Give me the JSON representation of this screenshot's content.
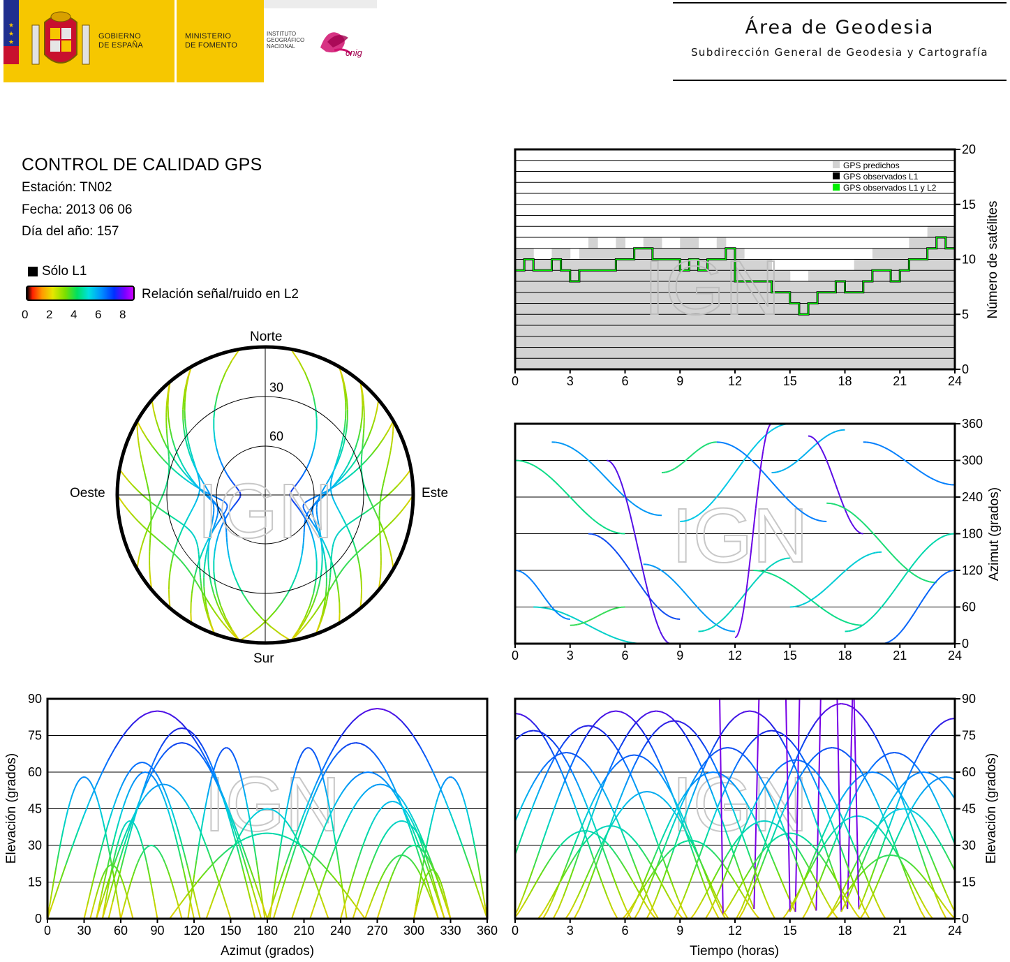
{
  "header": {
    "gobierno": [
      "GOBIERNO",
      "DE ESPAÑA"
    ],
    "ministerio": [
      "MINISTERIO",
      "DE FOMENTO"
    ],
    "instituto": [
      "INSTITUTO",
      "GEOGRÁFICO",
      "NACIONAL"
    ],
    "cnig_logo_text": "cnig",
    "area_title": "Área de Geodesia",
    "area_subtitle": "Subdirección General de Geodesia y Cartografía"
  },
  "info": {
    "title": "CONTROL DE CALIDAD GPS",
    "station": "Estación: TN02",
    "date": "Fecha: 2013 06 06",
    "doy": "Día del año: 157",
    "legend_l1": "Sólo L1",
    "legend_snr": "Relación señal/ruido en L2",
    "scale_ticks": [
      "0",
      "2",
      "4",
      "6",
      "8"
    ]
  },
  "colors": {
    "snr_scale": [
      "#000000",
      "#ff2000",
      "#ff9a00",
      "#e6e600",
      "#7ae000",
      "#00e060",
      "#00e0e0",
      "#0090ff",
      "#0030ff",
      "#7a00ff",
      "#cc00ff"
    ],
    "predicted": "#d3d3d3",
    "observed_l1": "#000000",
    "observed_l1_l2": "#00ee00"
  },
  "watermark": "IGN",
  "chart_data": [
    {
      "id": "skyplot",
      "type": "scatter",
      "title": "",
      "directions": [
        "Norte",
        "Sur",
        "Este",
        "Oeste"
      ],
      "elevation_rings": [
        "30",
        "60"
      ],
      "xlabel": "",
      "ylabel": ""
    },
    {
      "id": "sat_count",
      "type": "area",
      "xlabel": "",
      "ylabel": "Número de satélites",
      "xlim": [
        0,
        24
      ],
      "ylim": [
        0,
        20
      ],
      "xticks": [
        "0",
        "3",
        "6",
        "9",
        "12",
        "15",
        "18",
        "21",
        "24"
      ],
      "yticks": [
        "0",
        "5",
        "10",
        "15",
        "20"
      ],
      "legend": [
        "GPS predichos",
        "GPS observados L1",
        "GPS observados L1 y L2"
      ],
      "legend_position": "top-right",
      "x": [
        0,
        0.5,
        1,
        1.5,
        2,
        2.5,
        3,
        3.5,
        4,
        4.5,
        5,
        5.5,
        6,
        6.5,
        7,
        7.5,
        8,
        8.5,
        9,
        9.5,
        10,
        10.5,
        11,
        11.5,
        12,
        12.5,
        13,
        13.5,
        14,
        14.5,
        15,
        15.5,
        16,
        16.5,
        17,
        17.5,
        18,
        18.5,
        19,
        19.5,
        20,
        20.5,
        21,
        21.5,
        22,
        22.5,
        23,
        23.5,
        24
      ],
      "series": [
        {
          "name": "GPS predichos",
          "values": [
            11,
            11,
            10,
            10,
            11,
            11,
            10,
            11,
            12,
            11,
            11,
            12,
            11,
            11,
            12,
            12,
            11,
            11,
            12,
            12,
            11,
            11,
            12,
            11,
            11,
            10,
            10,
            10,
            9,
            9,
            8,
            8,
            9,
            9,
            9,
            9,
            9,
            10,
            10,
            11,
            11,
            11,
            11,
            12,
            12,
            13,
            13,
            13,
            12
          ]
        },
        {
          "name": "GPS observados L1 y L2",
          "values": [
            9,
            10,
            9,
            9,
            10,
            9,
            8,
            9,
            9,
            9,
            9,
            10,
            10,
            11,
            11,
            10,
            10,
            10,
            9,
            10,
            9,
            10,
            10,
            11,
            8,
            8,
            8,
            8,
            7,
            7,
            6,
            5,
            6,
            7,
            7,
            8,
            7,
            7,
            8,
            9,
            9,
            8,
            9,
            10,
            10,
            11,
            12,
            11,
            9
          ]
        }
      ]
    },
    {
      "id": "azimut_tiempo",
      "type": "scatter",
      "xlabel": "",
      "ylabel": "Azimut (grados)",
      "xlim": [
        0,
        24
      ],
      "ylim": [
        0,
        360
      ],
      "xticks": [
        "0",
        "3",
        "6",
        "9",
        "12",
        "15",
        "18",
        "21",
        "24"
      ],
      "yticks": [
        "0",
        "60",
        "120",
        "180",
        "240",
        "300",
        "360"
      ]
    },
    {
      "id": "elevacion_azimut",
      "type": "scatter",
      "xlabel": "Azimut (grados)",
      "ylabel": "Elevación (grados)",
      "xlim": [
        0,
        360
      ],
      "ylim": [
        0,
        90
      ],
      "xticks": [
        "0",
        "30",
        "60",
        "90",
        "120",
        "150",
        "180",
        "210",
        "240",
        "270",
        "300",
        "330",
        "360"
      ],
      "yticks": [
        "0",
        "15",
        "30",
        "45",
        "60",
        "75",
        "90"
      ]
    },
    {
      "id": "elevacion_tiempo",
      "type": "scatter",
      "xlabel": "Tiempo (horas)",
      "ylabel": "Elevación (grados)",
      "xlim": [
        0,
        24
      ],
      "ylim": [
        0,
        90
      ],
      "xticks": [
        "0",
        "3",
        "6",
        "9",
        "12",
        "15",
        "18",
        "21",
        "24"
      ],
      "yticks": [
        "0",
        "15",
        "30",
        "45",
        "60",
        "75",
        "90"
      ],
      "peaks": [
        {
          "t": 0.0,
          "el": 84
        },
        {
          "t": 1.0,
          "el": 77
        },
        {
          "t": 2.8,
          "el": 68
        },
        {
          "t": 3.8,
          "el": 36
        },
        {
          "t": 4.0,
          "el": 79
        },
        {
          "t": 5.2,
          "el": 38
        },
        {
          "t": 5.5,
          "el": 85
        },
        {
          "t": 6.5,
          "el": 67
        },
        {
          "t": 7.2,
          "el": 52
        },
        {
          "t": 7.7,
          "el": 85
        },
        {
          "t": 8.7,
          "el": 81
        },
        {
          "t": 9.6,
          "el": 32
        },
        {
          "t": 10.8,
          "el": 60
        },
        {
          "t": 11.6,
          "el": 70
        },
        {
          "t": 12.8,
          "el": 85
        },
        {
          "t": 13.6,
          "el": 40
        },
        {
          "t": 14.0,
          "el": 77
        },
        {
          "t": 15.0,
          "el": 35
        },
        {
          "t": 15.3,
          "el": 65
        },
        {
          "t": 17.3,
          "el": 70
        },
        {
          "t": 17.8,
          "el": 88
        },
        {
          "t": 18.7,
          "el": 42
        },
        {
          "t": 19.5,
          "el": 60
        },
        {
          "t": 20.5,
          "el": 26
        },
        {
          "t": 20.7,
          "el": 68
        },
        {
          "t": 21.2,
          "el": 45
        },
        {
          "t": 22.3,
          "el": 60
        },
        {
          "t": 23.5,
          "el": 58
        },
        {
          "t": 24.0,
          "el": 82
        }
      ]
    }
  ]
}
